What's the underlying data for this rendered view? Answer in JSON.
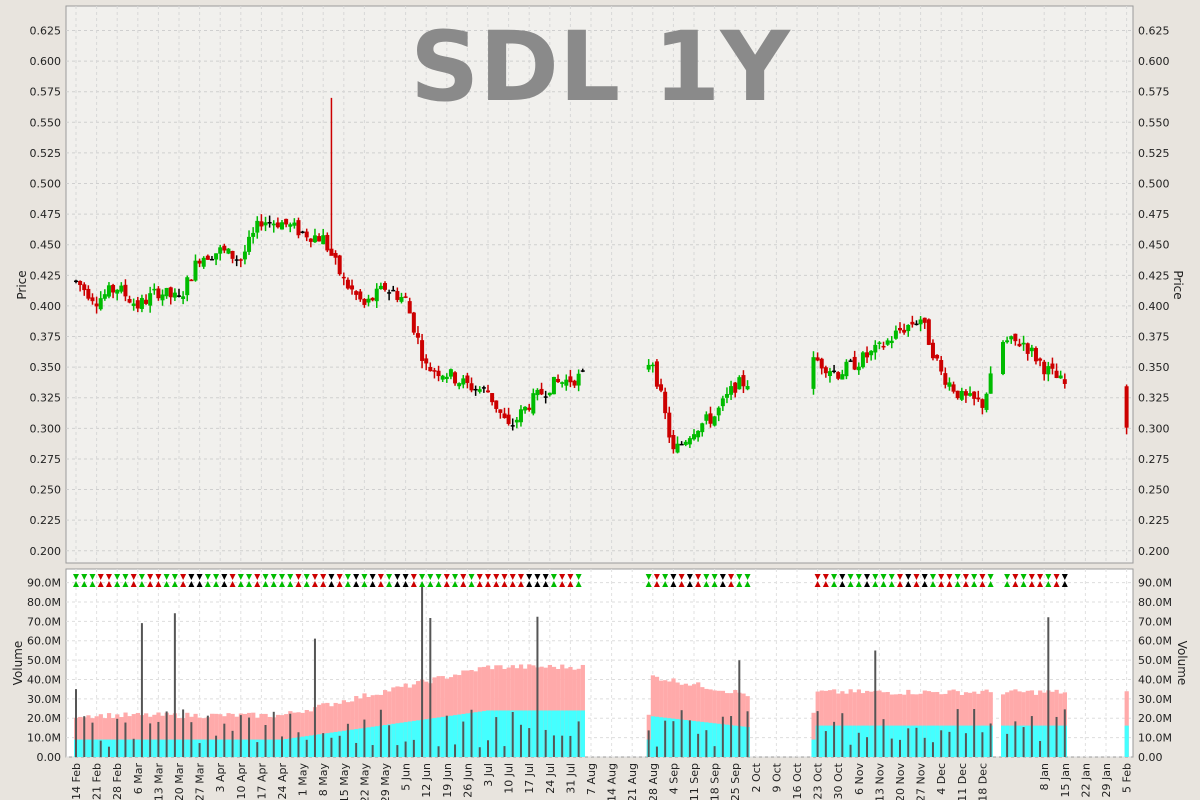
{
  "chart_data": {
    "type": "ohlc",
    "title": "SDL 1Y",
    "price_panel": {
      "ylabel": "Price",
      "ylim": [
        0.19,
        0.645
      ],
      "yticks": [
        "0.200",
        "0.225",
        "0.250",
        "0.275",
        "0.300",
        "0.325",
        "0.350",
        "0.375",
        "0.400",
        "0.425",
        "0.450",
        "0.475",
        "0.500",
        "0.525",
        "0.550",
        "0.575",
        "0.600",
        "0.625"
      ]
    },
    "volume_panel": {
      "ylabel": "Volume",
      "ylim": [
        0,
        97
      ],
      "yticks": [
        "0.00",
        "10.0M",
        "20.0M",
        "30.0M",
        "40.0M",
        "50.0M",
        "60.0M",
        "70.0M",
        "80.0M",
        "90.0M"
      ]
    },
    "x_labels": [
      "14 Feb",
      "21 Feb",
      "28 Feb",
      "6 Mar",
      "13 Mar",
      "20 Mar",
      "27 Mar",
      "3 Apr",
      "10 Apr",
      "17 Apr",
      "24 Apr",
      "1 May",
      "8 May",
      "15 May",
      "22 May",
      "29 May",
      "5 Jun",
      "12 Jun",
      "19 Jun",
      "26 Jun",
      "3 Jul",
      "10 Jul",
      "17 Jul",
      "24 Jul",
      "31 Jul",
      "7 Aug",
      "14 Aug",
      "21 Aug",
      "28 Aug",
      "4 Sep",
      "11 Sep",
      "18 Sep",
      "25 Sep",
      "2 Oct",
      "9 Oct",
      "16 Oct",
      "23 Oct",
      "30 Oct",
      "6 Nov",
      "13 Nov",
      "20 Nov",
      "27 Nov",
      "4 Dec",
      "11 Dec",
      "18 Dec",
      "8 Jan",
      "15 Jan",
      "22 Jan",
      "29 Jan",
      "5 Feb"
    ],
    "week_offsets": [
      0,
      1,
      2,
      3,
      4,
      5,
      6,
      7,
      8,
      9,
      10,
      11,
      12,
      13,
      14,
      15,
      16,
      17,
      18,
      19,
      20,
      21,
      22,
      23,
      24,
      25,
      26,
      27,
      28,
      29,
      30,
      31,
      32,
      33,
      34,
      35,
      36,
      37,
      38,
      39,
      40,
      41,
      42,
      43,
      44,
      47,
      48,
      49,
      50,
      51
    ],
    "price_anchors": [
      {
        "w": 0,
        "c": 0.42
      },
      {
        "w": 1,
        "c": 0.405
      },
      {
        "w": 2,
        "c": 0.415
      },
      {
        "w": 3,
        "c": 0.4
      },
      {
        "w": 4,
        "c": 0.412
      },
      {
        "w": 5,
        "c": 0.405
      },
      {
        "w": 6,
        "c": 0.44
      },
      {
        "w": 7,
        "c": 0.445
      },
      {
        "w": 8,
        "c": 0.438
      },
      {
        "w": 9,
        "c": 0.47
      },
      {
        "w": 10,
        "c": 0.468
      },
      {
        "w": 11,
        "c": 0.46
      },
      {
        "w": 12,
        "c": 0.455
      },
      {
        "w": 13,
        "c": 0.42
      },
      {
        "w": 14,
        "c": 0.4
      },
      {
        "w": 15,
        "c": 0.415
      },
      {
        "w": 16,
        "c": 0.405
      },
      {
        "w": 17,
        "c": 0.35
      },
      {
        "w": 18,
        "c": 0.345
      },
      {
        "w": 19,
        "c": 0.335
      },
      {
        "w": 20,
        "c": 0.33
      },
      {
        "w": 21,
        "c": 0.3
      },
      {
        "w": 22,
        "c": 0.32
      },
      {
        "w": 23,
        "c": 0.335
      },
      {
        "w": 24,
        "c": 0.34
      },
      {
        "w": 28,
        "c": 0.355
      },
      {
        "w": 29,
        "c": 0.28
      },
      {
        "w": 30,
        "c": 0.3
      },
      {
        "w": 31,
        "c": 0.31
      },
      {
        "w": 32,
        "c": 0.335
      },
      {
        "w": 36,
        "c": 0.355
      },
      {
        "w": 37,
        "c": 0.345
      },
      {
        "w": 38,
        "c": 0.355
      },
      {
        "w": 39,
        "c": 0.365
      },
      {
        "w": 40,
        "c": 0.38
      },
      {
        "w": 41,
        "c": 0.39
      },
      {
        "w": 42,
        "c": 0.345
      },
      {
        "w": 43,
        "c": 0.325
      },
      {
        "w": 44,
        "c": 0.32
      },
      {
        "w": 45,
        "c": 0.37
      },
      {
        "w": 46,
        "c": 0.37
      },
      {
        "w": 47,
        "c": 0.35
      },
      {
        "w": 47.8,
        "c": 0.338
      },
      {
        "w": 51,
        "c": 0.295
      }
    ],
    "gaps": [
      [
        24.6,
        27.8
      ],
      [
        32.6,
        35.8
      ],
      [
        44.4,
        44.9
      ],
      [
        48.05,
        50.9
      ]
    ],
    "wick_spikes": [
      {
        "w": 12.3,
        "high": 0.57,
        "low": 0.445
      }
    ],
    "colors": {
      "up": "#00bb00",
      "down": "#cc0000",
      "flat": "#000000",
      "volume_bar": "#555555",
      "volume_band_outer": "#ffaaaa",
      "volume_band_inner": "#44ffff"
    }
  }
}
